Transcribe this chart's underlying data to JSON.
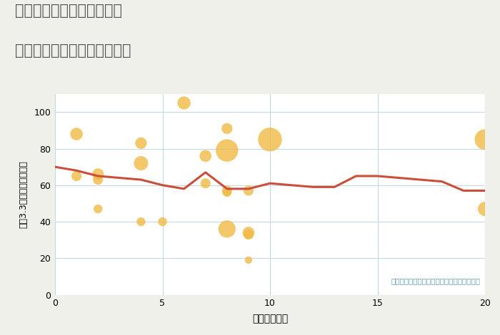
{
  "title_line1": "三重県松阪市嬉野森本町の",
  "title_line2": "駅距離別中古マンション価格",
  "xlabel": "駅距離（分）",
  "ylabel": "坪（3.3㎡）単価（万円）",
  "annotation": "円の大きさは、取引のあった物件面積を示す",
  "background_color": "#f0f0eb",
  "plot_bg_color": "#ffffff",
  "grid_color": "#c5d8e8",
  "xlim": [
    0,
    20
  ],
  "ylim": [
    0,
    110
  ],
  "xticks": [
    0,
    5,
    10,
    15,
    20
  ],
  "yticks": [
    0,
    20,
    40,
    60,
    80,
    100
  ],
  "bubble_color": "#f0b942",
  "bubble_alpha": 0.78,
  "line_color": "#c94f3a",
  "line_width": 2.2,
  "scatter_x": [
    1,
    1,
    2,
    2,
    2,
    4,
    4,
    4,
    5,
    6,
    7,
    7,
    8,
    8,
    8,
    8,
    8,
    9,
    9,
    9,
    9,
    10,
    20,
    20
  ],
  "scatter_y": [
    88,
    65,
    63,
    47,
    66,
    83,
    40,
    72,
    40,
    105,
    76,
    61,
    91,
    79,
    57,
    56,
    36,
    57,
    34,
    19,
    33,
    85,
    85,
    47
  ],
  "scatter_size": [
    100,
    65,
    65,
    50,
    85,
    85,
    50,
    130,
    50,
    110,
    90,
    65,
    75,
    320,
    65,
    50,
    190,
    65,
    90,
    35,
    65,
    360,
    270,
    130
  ],
  "line_x": [
    0,
    1,
    2,
    3,
    4,
    5,
    6,
    7,
    8,
    9,
    10,
    11,
    12,
    13,
    14,
    15,
    16,
    17,
    18,
    19,
    20
  ],
  "line_y": [
    70,
    68,
    65,
    64,
    63,
    60,
    58,
    67,
    58,
    58,
    61,
    60,
    59,
    59,
    65,
    65,
    64,
    63,
    62,
    57,
    57
  ]
}
